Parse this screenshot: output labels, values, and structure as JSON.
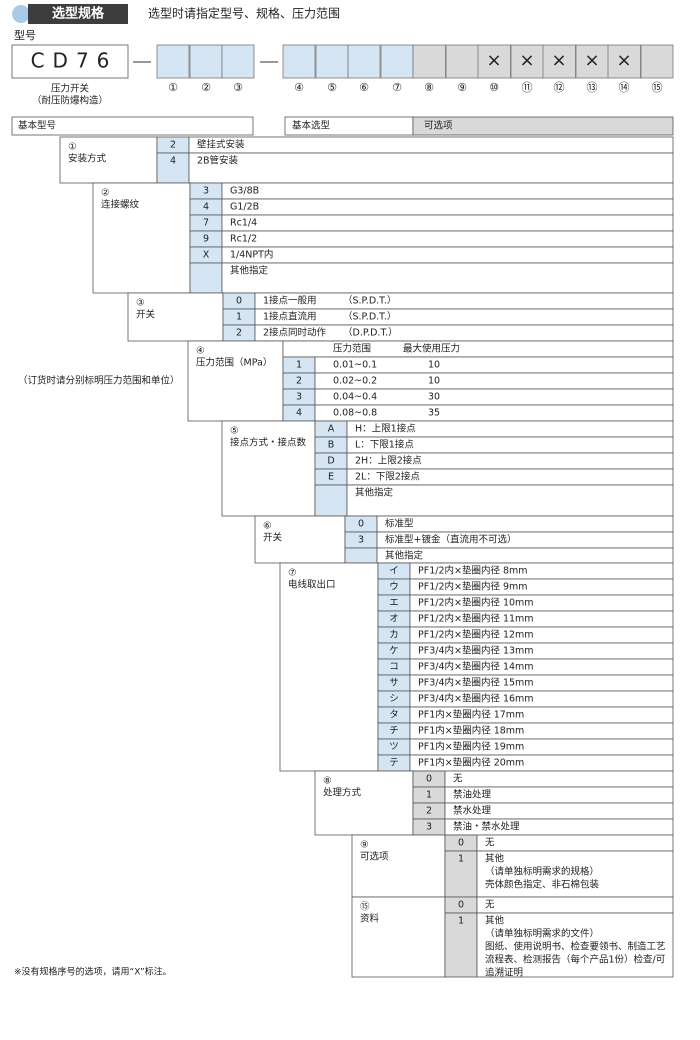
{
  "header": {
    "badge": "选型规格",
    "note": "选型时请指定型号、规格、压力范围"
  },
  "model": {
    "label": "型号",
    "code": "CD76",
    "name": [
      "压力开关",
      "（耐压防爆构造）"
    ],
    "slots": [
      {
        "label": "①"
      },
      {
        "label": "②"
      },
      {
        "label": "③"
      },
      {
        "label": "④"
      },
      {
        "label": "⑤"
      },
      {
        "label": "⑥"
      },
      {
        "label": "⑦"
      },
      {
        "label": "⑧"
      },
      {
        "label": "⑨"
      },
      {
        "label": "⑩",
        "mark": "×"
      },
      {
        "label": "⑪",
        "mark": "×"
      },
      {
        "label": "⑫",
        "mark": "×"
      },
      {
        "label": "⑬",
        "mark": "×"
      },
      {
        "label": "⑭",
        "mark": "×"
      },
      {
        "label": "⑮"
      }
    ]
  },
  "table": {
    "basic_model": "基本型号",
    "basic_selection": "基本选型",
    "options": "可选项"
  },
  "sections": [
    {
      "num": "①",
      "title": "安装方式",
      "rows": [
        {
          "code": "2",
          "text": "壁挂式安装"
        },
        {
          "code": "4",
          "text": "2B管安装"
        }
      ]
    },
    {
      "num": "②",
      "title": "连接螺纹",
      "rows": [
        {
          "code": "3",
          "text": "G3/8B"
        },
        {
          "code": "4",
          "text": "G1/2B"
        },
        {
          "code": "7",
          "text": "Rc1/4"
        },
        {
          "code": "9",
          "text": "Rc1/2"
        },
        {
          "code": "X",
          "text": "1/4NPT内"
        },
        {
          "text": "其他指定"
        }
      ]
    },
    {
      "num": "③",
      "title": "开关",
      "rows": [
        {
          "code": "0",
          "text": "1接点一般用",
          "spec": "（S.P.D.T.）"
        },
        {
          "code": "1",
          "text": "1接点直流用",
          "spec": "（S.P.D.T.）"
        },
        {
          "code": "2",
          "text": "2接点同时动作",
          "spec": "（D.P.D.T.）"
        }
      ]
    },
    {
      "num": "④",
      "title": "压力范围（MPa）",
      "note": "（订货时请分别标明压力范围和单位）",
      "columns": {
        "range": "压力范围",
        "max": "最大使用压力"
      },
      "rows": [
        {
          "code": "1",
          "range": "0.01~0.1",
          "max": "10"
        },
        {
          "code": "2",
          "range": "0.02~0.2",
          "max": "10"
        },
        {
          "code": "3",
          "range": "0.04~0.4",
          "max": "30"
        },
        {
          "code": "4",
          "range": "0.08~0.8",
          "max": "35"
        }
      ]
    },
    {
      "num": "⑤",
      "title": "接点方式・接点数",
      "rows": [
        {
          "code": "A",
          "text": "H：上限1接点"
        },
        {
          "code": "B",
          "text": "L：下限1接点"
        },
        {
          "code": "D",
          "text": "2H：上限2接点"
        },
        {
          "code": "E",
          "text": "2L：下限2接点"
        },
        {
          "text": "其他指定"
        }
      ]
    },
    {
      "num": "⑥",
      "title": "开关",
      "rows": [
        {
          "code": "0",
          "text": "标准型"
        },
        {
          "code": "3",
          "text": "标准型+镀金（直流用不可选）"
        },
        {
          "text": "其他指定"
        }
      ]
    },
    {
      "num": "⑦",
      "title": "电线取出口",
      "rows": [
        {
          "code": "イ",
          "text": "PF1/2内×垫圈内径 8mm"
        },
        {
          "code": "ウ",
          "text": "PF1/2内×垫圈内径 9mm"
        },
        {
          "code": "エ",
          "text": "PF1/2内×垫圈内径 10mm"
        },
        {
          "code": "オ",
          "text": "PF1/2内×垫圈内径 11mm"
        },
        {
          "code": "カ",
          "text": "PF1/2内×垫圈内径 12mm"
        },
        {
          "code": "ケ",
          "text": "PF3/4内×垫圈内径 13mm"
        },
        {
          "code": "コ",
          "text": "PF3/4内×垫圈内径 14mm"
        },
        {
          "code": "サ",
          "text": "PF3/4内×垫圈内径 15mm"
        },
        {
          "code": "シ",
          "text": "PF3/4内×垫圈内径 16mm"
        },
        {
          "code": "タ",
          "text": "PF1内×垫圈内径 17mm"
        },
        {
          "code": "チ",
          "text": "PF1内×垫圈内径 18mm"
        },
        {
          "code": "ツ",
          "text": "PF1内×垫圈内径 19mm"
        },
        {
          "code": "テ",
          "text": "PF1内×垫圈内径 20mm"
        }
      ]
    },
    {
      "num": "⑧",
      "title": "处理方式",
      "rows": [
        {
          "code": "0",
          "text": "无"
        },
        {
          "code": "1",
          "text": "禁油处理"
        },
        {
          "code": "2",
          "text": "禁水处理"
        },
        {
          "code": "3",
          "text": "禁油・禁水处理"
        }
      ]
    },
    {
      "num": "⑨",
      "title": "可选项",
      "rows": [
        {
          "code": "0",
          "text": "无"
        },
        {
          "code": "1",
          "text": [
            "其他",
            "（请单独标明需求的规格）",
            "壳体颜色指定、非石棉包装"
          ]
        }
      ]
    },
    {
      "num": "⑮",
      "title": "资料",
      "rows": [
        {
          "code": "0",
          "text": "无"
        },
        {
          "code": "1",
          "text": [
            "其他",
            "（请单独标明需求的文件）",
            "图纸、使用说明书、检查要领书、制造工艺",
            "流程表、检测报告（每个产品1份）检查/可",
            "追溯证明"
          ]
        }
      ]
    }
  ],
  "footnote": "※没有规格序号的选项，请用“X”标注。"
}
